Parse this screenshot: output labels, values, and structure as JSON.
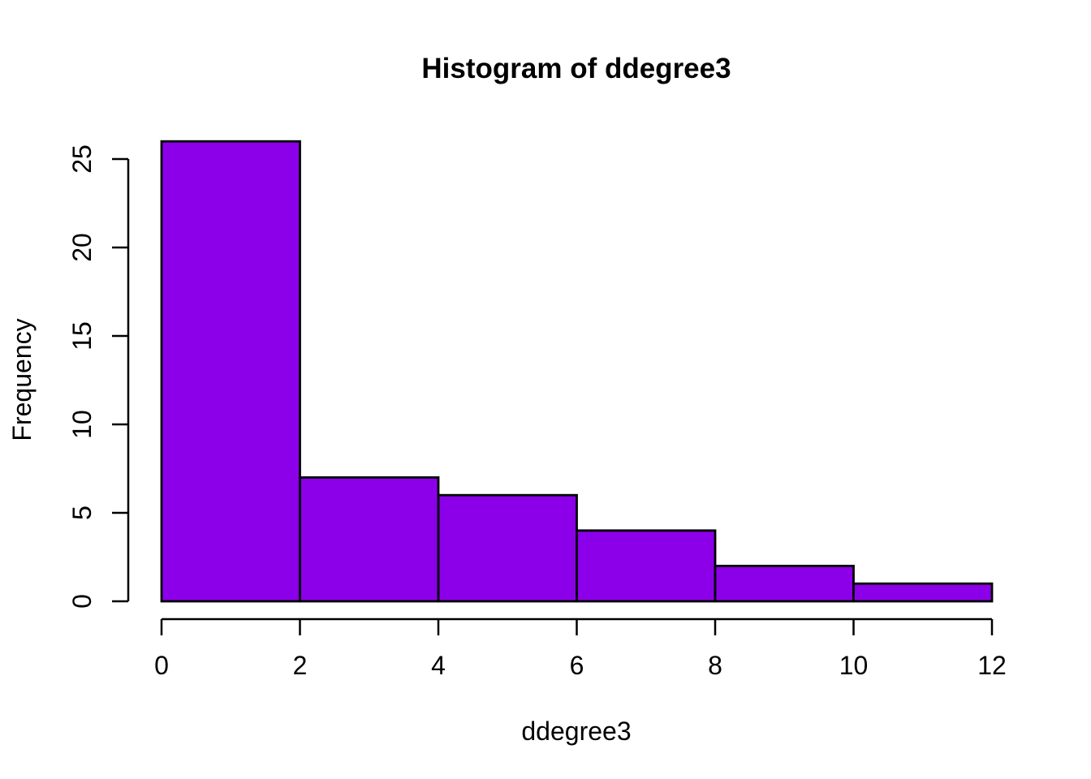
{
  "chart_data": {
    "type": "bar",
    "subtype": "histogram",
    "title": "Histogram of ddegree3",
    "xlabel": "ddegree3",
    "ylabel": "Frequency",
    "bin_edges": [
      0,
      2,
      4,
      6,
      8,
      10,
      12
    ],
    "counts": [
      26,
      7,
      6,
      4,
      2,
      1
    ],
    "x_ticks": [
      0,
      2,
      4,
      6,
      8,
      10,
      12
    ],
    "y_ticks": [
      0,
      5,
      10,
      15,
      20,
      25
    ],
    "xlim": [
      0,
      12
    ],
    "ylim": [
      0,
      26
    ],
    "grid": "off",
    "legend": "none",
    "colors": {
      "bar_fill": "#8B00E8",
      "bar_stroke": "#000000",
      "axis": "#000000",
      "text": "#000000",
      "background": "#FFFFFF"
    }
  }
}
